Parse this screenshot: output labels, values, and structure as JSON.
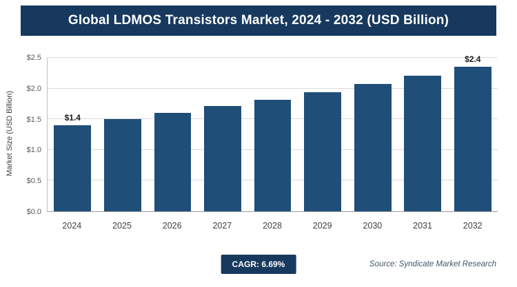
{
  "header": {
    "title": "Global LDMOS Transistors Market, 2024 - 2032 (USD Billion)"
  },
  "chart_data": {
    "type": "bar",
    "title": "Global LDMOS Transistors Market, 2024 - 2032 (USD Billion)",
    "categories": [
      "2024",
      "2025",
      "2026",
      "2027",
      "2028",
      "2029",
      "2030",
      "2031",
      "2032"
    ],
    "values": [
      1.4,
      1.5,
      1.6,
      1.71,
      1.82,
      1.94,
      2.07,
      2.21,
      2.36
    ],
    "bar_labels": [
      "$1.4",
      "",
      "",
      "",
      "",
      "",
      "",
      "",
      "$2.4"
    ],
    "xlabel": "",
    "ylabel": "Market Size (USD Billion)",
    "ylim": [
      0,
      2.5
    ],
    "ytick_labels": [
      "$0.0",
      "$0.5",
      "$1.0",
      "$1.5",
      "$2.0",
      "$2.5"
    ],
    "grid": true,
    "legend": "none",
    "bar_color": "#1F4E79"
  },
  "footer": {
    "cagr_label": "CAGR: 6.69%",
    "source": "Source: Syndicate Market Research"
  },
  "colors": {
    "banner_bg": "#17395E",
    "bar": "#1F4E79",
    "gridline": "#d9d9d9"
  }
}
